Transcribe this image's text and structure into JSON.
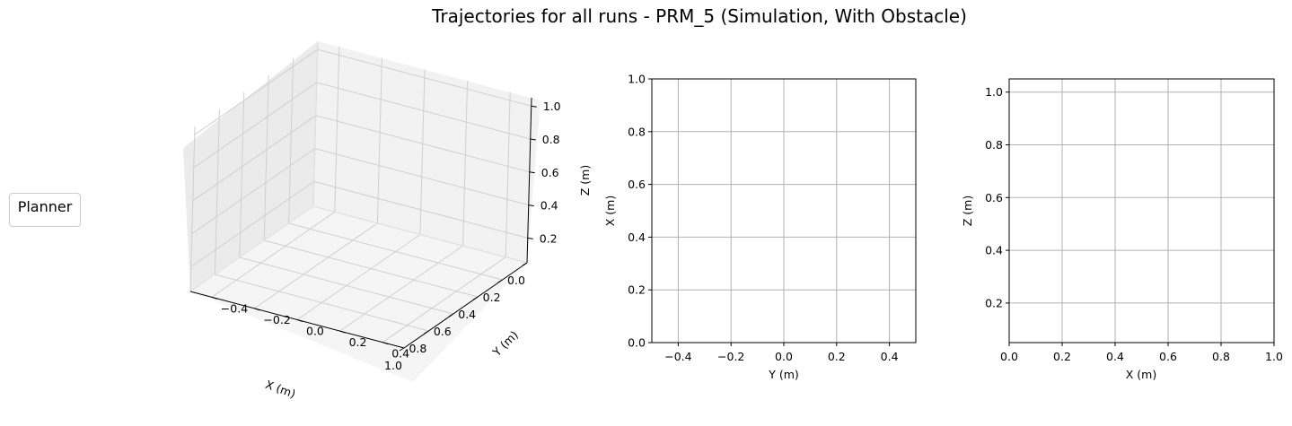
{
  "figure": {
    "title": "Trajectories for all runs - PRM_5 (Simulation, With Obstacle)",
    "legend_title": "Planner"
  },
  "chart_data": [
    {
      "type": "line",
      "projection": "3d",
      "series": [],
      "xlabel": "X (m)",
      "ylabel": "Y (m)",
      "zlabel": "Z (m)",
      "xlim": [
        0.0,
        1.0
      ],
      "ylim": [
        -0.5,
        0.5
      ],
      "zlim": [
        0.05,
        1.05
      ],
      "xticks": [
        "0.0",
        "0.2",
        "0.4",
        "0.6",
        "0.8",
        "1.0"
      ],
      "yticks": [
        "−0.4",
        "−0.2",
        "0.0",
        "0.2",
        "0.4"
      ],
      "zticks": [
        "0.2",
        "0.4",
        "0.6",
        "0.8",
        "1.0"
      ],
      "grid": true
    },
    {
      "type": "line",
      "series": [],
      "xlabel": "Y (m)",
      "ylabel": "X (m)",
      "xlim": [
        -0.5,
        0.5
      ],
      "ylim": [
        0.0,
        1.0
      ],
      "xticks": [
        "−0.4",
        "−0.2",
        "0.0",
        "0.2",
        "0.4"
      ],
      "yticks": [
        "0.0",
        "0.2",
        "0.4",
        "0.6",
        "0.8",
        "1.0"
      ],
      "grid": true
    },
    {
      "type": "line",
      "series": [],
      "xlabel": "X (m)",
      "ylabel": "Z (m)",
      "xlim": [
        0.0,
        1.0
      ],
      "ylim": [
        0.05,
        1.05
      ],
      "xticks": [
        "0.0",
        "0.2",
        "0.4",
        "0.6",
        "0.8",
        "1.0"
      ],
      "yticks": [
        "0.2",
        "0.4",
        "0.6",
        "0.8",
        "1.0"
      ],
      "grid": true
    }
  ]
}
